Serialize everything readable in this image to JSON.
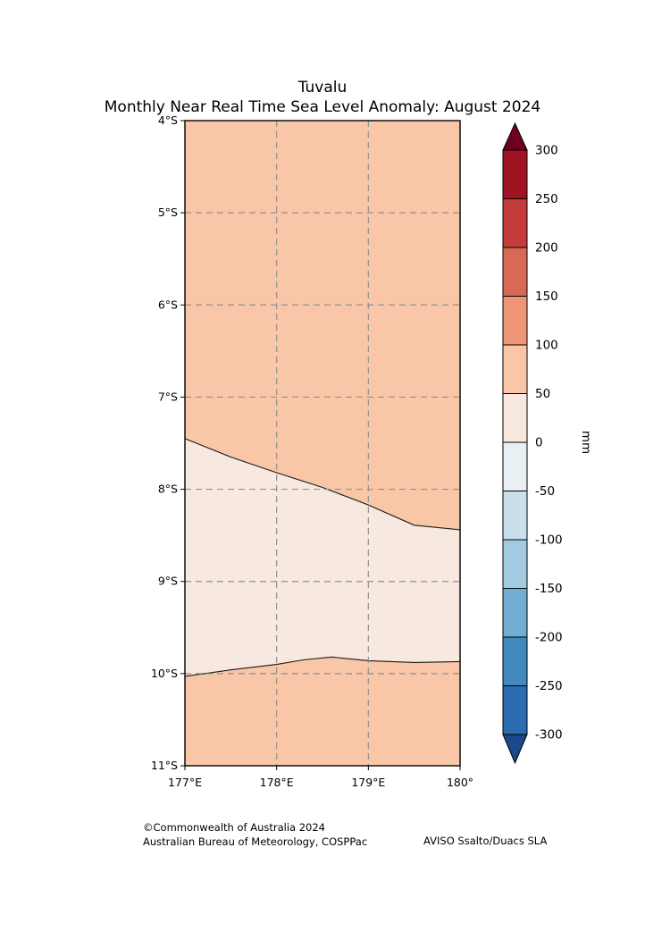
{
  "title": {
    "line1": "Tuvalu",
    "line2": "Monthly Near Real Time Sea Level Anomaly: August 2024"
  },
  "footer": {
    "copyright": "©Commonwealth of Australia 2024",
    "agency": "Australian Bureau of Meteorology, COSPPac",
    "source": "AVISO Ssalto/Duacs SLA"
  },
  "chart_data": {
    "type": "heatmap",
    "subtype": "filled-contour-map",
    "title": "Tuvalu",
    "subtitle": "Monthly Near Real Time Sea Level Anomaly: August 2024",
    "x_axis": {
      "range": [
        177,
        180
      ],
      "values": [
        177,
        178,
        179,
        180
      ],
      "ticks": [
        "177°E",
        "178°E",
        "179°E",
        "180°"
      ]
    },
    "y_axis": {
      "range": [
        4,
        11
      ],
      "values": [
        4,
        5,
        6,
        7,
        8,
        9,
        10,
        11
      ],
      "ticks": [
        "4°S",
        "5°S",
        "6°S",
        "7°S",
        "8°S",
        "9°S",
        "10°S",
        "11°S"
      ]
    },
    "grid": {
      "x_values": [
        178,
        179
      ],
      "y_values": [
        5,
        6,
        7,
        8,
        9,
        10
      ],
      "style": "dashed",
      "color": "#909090"
    },
    "map": {
      "units": "mm",
      "outer_band": {
        "value_range": [
          50,
          100
        ],
        "color": "#f9c6a8"
      },
      "middle_band": {
        "value_range": [
          0,
          50
        ],
        "color": "#f8e9e0"
      },
      "contours": [
        {
          "level": 50,
          "points": [
            [
              177,
              7.45
            ],
            [
              177.5,
              7.65
            ],
            [
              178,
              7.82
            ],
            [
              178.5,
              7.98
            ],
            [
              179,
              8.17
            ],
            [
              179.5,
              8.39
            ],
            [
              180,
              8.44
            ]
          ]
        },
        {
          "level": 50,
          "points": [
            [
              177,
              10.03
            ],
            [
              177.5,
              9.96
            ],
            [
              178,
              9.9
            ],
            [
              178.3,
              9.85
            ],
            [
              178.6,
              9.82
            ],
            [
              179,
              9.86
            ],
            [
              179.5,
              9.88
            ],
            [
              180,
              9.87
            ]
          ]
        }
      ]
    },
    "colorbar": {
      "label": "mm",
      "tick_values": [
        300,
        250,
        200,
        150,
        100,
        50,
        0,
        -50,
        -100,
        -150,
        -200,
        -250,
        -300
      ],
      "segments": [
        {
          "range": [
            250,
            300
          ],
          "color": "#a01322"
        },
        {
          "range": [
            200,
            250
          ],
          "color": "#c43c3c"
        },
        {
          "range": [
            150,
            200
          ],
          "color": "#d96954"
        },
        {
          "range": [
            100,
            150
          ],
          "color": "#ee9677"
        },
        {
          "range": [
            50,
            100
          ],
          "color": "#f9c6a8"
        },
        {
          "range": [
            0,
            50
          ],
          "color": "#f8e9e0"
        },
        {
          "range": [
            -50,
            0
          ],
          "color": "#e9f0f4"
        },
        {
          "range": [
            -100,
            -50
          ],
          "color": "#c9dfec"
        },
        {
          "range": [
            -150,
            -100
          ],
          "color": "#a2cbe2"
        },
        {
          "range": [
            -200,
            -150
          ],
          "color": "#72add3"
        },
        {
          "range": [
            -250,
            -200
          ],
          "color": "#4289c0"
        },
        {
          "range": [
            -300,
            -250
          ],
          "color": "#2c6cb0"
        }
      ],
      "arrow_top_color": "#70001f",
      "arrow_bottom_color": "#1a4a8c"
    }
  }
}
